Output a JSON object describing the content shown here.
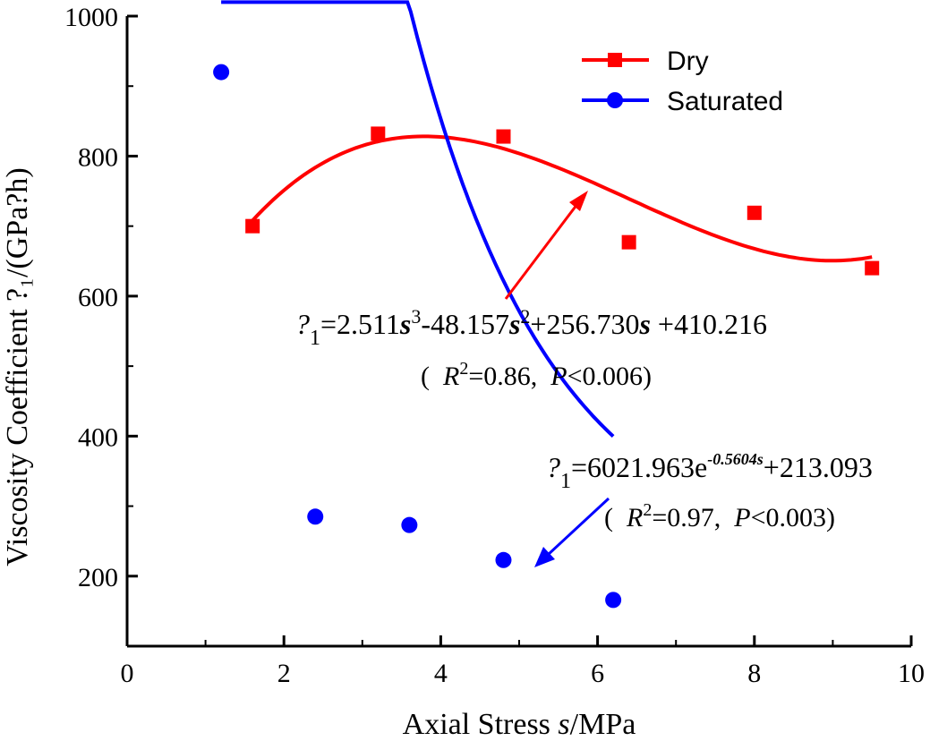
{
  "chart_data": {
    "type": "scatter",
    "xlabel_prefix": "Axial Stress ",
    "xlabel_var": "s",
    "xlabel_suffix": "/MPa",
    "ylabel": "Viscosity Coefficient ?₁/(GPa?h)",
    "xlim": [
      0,
      10
    ],
    "ylim": [
      100,
      1000
    ],
    "xticks": [
      0,
      2,
      4,
      6,
      8,
      10
    ],
    "yticks": [
      200,
      400,
      600,
      800,
      1000
    ],
    "colors": {
      "dry": "#ff0000",
      "saturated": "#0000ff"
    },
    "series": [
      {
        "name": "Dry",
        "marker": "square",
        "x": [
          1.6,
          3.2,
          4.8,
          6.4,
          8.0,
          9.5
        ],
        "y": [
          700,
          832,
          828,
          677,
          719,
          640
        ],
        "fit": {
          "kind": "cubic",
          "coefs": [
            2.511,
            -48.157,
            256.73,
            410.216
          ],
          "range": [
            1.6,
            9.5
          ]
        }
      },
      {
        "name": "Saturated",
        "marker": "circle",
        "x": [
          1.2,
          2.4,
          3.6,
          4.8,
          6.2
        ],
        "y": [
          920,
          285,
          273,
          223,
          166
        ],
        "fit": {
          "kind": "exp",
          "a": 6021.963,
          "b": -0.5604,
          "c": 213.093,
          "range": [
            1.2,
            6.2
          ]
        }
      }
    ],
    "annotations": {
      "dry_eq": {
        "sym": "?",
        "sub": "1",
        "t1": "=2.511",
        "v1": "s",
        "p1": "3",
        "t2": "-48.157",
        "v2": "s",
        "p2": "2",
        "t3": "+256.730",
        "v3": "s",
        "t4": " +410.216"
      },
      "dry_stats": {
        "open": "(  ",
        "r": "R",
        "rp": "2",
        "rv": "=0.86,  ",
        "p": "P",
        "pv": "<0.006)"
      },
      "sat_eq": {
        "sym": "?",
        "sub": "1",
        "t1": "=6021.963e",
        "exp": "-0.5604",
        "ev": "s",
        "t2": "+213.093"
      },
      "sat_stats": {
        "open": "(  ",
        "r": "R",
        "rp": "2",
        "rv": "=0.97,  ",
        "p": "P",
        "pv": "<0.003)"
      }
    }
  }
}
